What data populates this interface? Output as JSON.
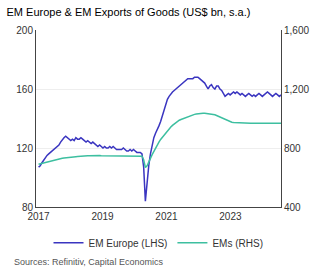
{
  "chart_data": {
    "type": "line",
    "title": "EM Europe & EM Exports of Goods (US$ bn, s.a.)",
    "annotations": [
      "Sources: Refinitiv, Capital Economics"
    ],
    "x": [
      2017.0,
      2017.053,
      2017.1061,
      2017.1591,
      2017.2121,
      2017.2651,
      2017.3182,
      2017.3712,
      2017.4242,
      2017.4773,
      2017.5303,
      2017.5833,
      2017.6363,
      2017.6894,
      2017.7424,
      2017.7954,
      2017.8484,
      2017.9015,
      2017.9545,
      2018.0075,
      2018.0606,
      2018.1136,
      2018.1666,
      2018.2196,
      2018.2727,
      2018.3257,
      2018.3787,
      2018.4318,
      2018.4848,
      2018.5378,
      2018.5908,
      2018.6439,
      2018.6969,
      2018.7499,
      2018.803,
      2018.856,
      2018.909,
      2018.962,
      2019.0151,
      2019.0681,
      2019.1211,
      2019.1741,
      2019.2272,
      2019.2802,
      2019.3332,
      2019.3863,
      2019.4393,
      2019.4923,
      2019.5453,
      2019.5984,
      2019.6514,
      2019.7044,
      2019.7575,
      2019.8105,
      2019.8635,
      2019.9165,
      2019.9696,
      2020.0226,
      2020.0756,
      2020.1287,
      2020.1817,
      2020.2347,
      2020.2877,
      2020.3408,
      2020.3938,
      2020.4468,
      2020.4998,
      2020.5529,
      2020.6059,
      2020.6589,
      2020.712,
      2020.765,
      2020.818,
      2020.871,
      2020.9241,
      2020.9771,
      2021.0301,
      2021.0832,
      2021.1362,
      2021.1892,
      2021.2422,
      2021.2953,
      2021.3483,
      2021.4013,
      2021.4544,
      2021.5074,
      2021.5604,
      2021.6134,
      2021.6665,
      2021.7195,
      2021.7725,
      2021.8255,
      2021.8786,
      2021.9316,
      2021.9846,
      2022.0377,
      2022.0907,
      2022.1437,
      2022.1967,
      2022.2498,
      2022.3028,
      2022.3558,
      2022.4089,
      2022.4619,
      2022.5149,
      2022.5679,
      2022.621,
      2022.674,
      2022.727,
      2022.7801,
      2022.8331,
      2022.8861,
      2022.9391,
      2022.9922,
      2023.0452,
      2023.0982,
      2023.1512,
      2023.2043,
      2023.2573,
      2023.3103,
      2023.3634,
      2023.4164,
      2023.4694,
      2023.5224,
      2023.5755,
      2023.6285,
      2023.6815,
      2023.7346,
      2023.7876,
      2023.8406,
      2023.8936,
      2023.9467,
      2023.9997,
      2024.0527,
      2024.1058,
      2024.1588,
      2024.2118,
      2024.2648,
      2024.3179,
      2024.3709,
      2024.4239,
      2024.477,
      2024.53,
      2024.583
    ],
    "xlim": [
      2016.92,
      2024.583
    ],
    "xticks": [
      2017,
      2019,
      2021,
      2023
    ],
    "ylim": [
      80,
      200
    ],
    "yticks": [
      80,
      120,
      160,
      200
    ],
    "y2lim": [
      400,
      1600
    ],
    "y2ticks": [
      400,
      800,
      {
        "value": 1200,
        "label": "1,200"
      },
      {
        "value": 1600,
        "label": "1,600"
      }
    ],
    "grid": true,
    "legend": "bottom",
    "series": [
      {
        "name": "EM Europe (LHS)",
        "color": "#3a35c0",
        "values": [
          107,
          108,
          110,
          112,
          114,
          115,
          116,
          117,
          118,
          119,
          120,
          121,
          122,
          124,
          126,
          127,
          128,
          127,
          126,
          125,
          126,
          125,
          127,
          126,
          126,
          127,
          126,
          125,
          124,
          125,
          124,
          123,
          124,
          123,
          122,
          121,
          122,
          121,
          120,
          121,
          120,
          120,
          121,
          120,
          121,
          120,
          119,
          119,
          119,
          119,
          120,
          119,
          118,
          118,
          119,
          118,
          119,
          118,
          117,
          117,
          117,
          116,
          107,
          84,
          98,
          108,
          116,
          122,
          127,
          130,
          132,
          135,
          138,
          142,
          146,
          150,
          153,
          155,
          157,
          158,
          159,
          160,
          161,
          162,
          163,
          164,
          165,
          166,
          167,
          167,
          167,
          167,
          168,
          168,
          168,
          167,
          166,
          165,
          164,
          162,
          160,
          162,
          163,
          161,
          160,
          162,
          162,
          160,
          159,
          157,
          155,
          156,
          157,
          156,
          157,
          158,
          157,
          158,
          157,
          156,
          157,
          156,
          155,
          156,
          157,
          156,
          155,
          156,
          155,
          156,
          157,
          156,
          155,
          156,
          157,
          158,
          157,
          156,
          155,
          156,
          157,
          156,
          155,
          156
        ]
      },
      {
        "name": "EMs (RHS)",
        "color": "#3dbfa0",
        "axis": "y2",
        "values": [
          690,
          693,
          696,
          700,
          703,
          706,
          710,
          713,
          715,
          718,
          720,
          722,
          724,
          727,
          730,
          732,
          734,
          736,
          737,
          738,
          739,
          740,
          741,
          742,
          742,
          743,
          744,
          745,
          746,
          747,
          748,
          749,
          749,
          750,
          750,
          749,
          749,
          748,
          748,
          748,
          749,
          748,
          748,
          749,
          748,
          748,
          747,
          747,
          746,
          746,
          746,
          747,
          746,
          746,
          747,
          746,
          746,
          745,
          745,
          745,
          744,
          744,
          720,
          668,
          680,
          700,
          730,
          755,
          778,
          800,
          820,
          840,
          858,
          873,
          888,
          903,
          917,
          930,
          942,
          953,
          963,
          972,
          980,
          988,
          993,
          998,
          1002,
          1007,
          1012,
          1017,
          1021,
          1025,
          1028,
          1030,
          1032,
          1033,
          1034,
          1035,
          1035,
          1034,
          1033,
          1032,
          1030,
          1028,
          1025,
          1020,
          1015,
          1010,
          1005,
          998,
          990,
          985,
          980,
          978,
          975,
          973,
          972,
          971,
          970,
          970,
          969,
          968,
          968,
          967,
          968,
          967,
          967,
          968,
          968,
          967,
          968,
          968,
          967,
          968,
          969,
          970,
          969,
          968,
          967,
          968,
          969,
          968,
          967,
          968
        ]
      }
    ]
  }
}
